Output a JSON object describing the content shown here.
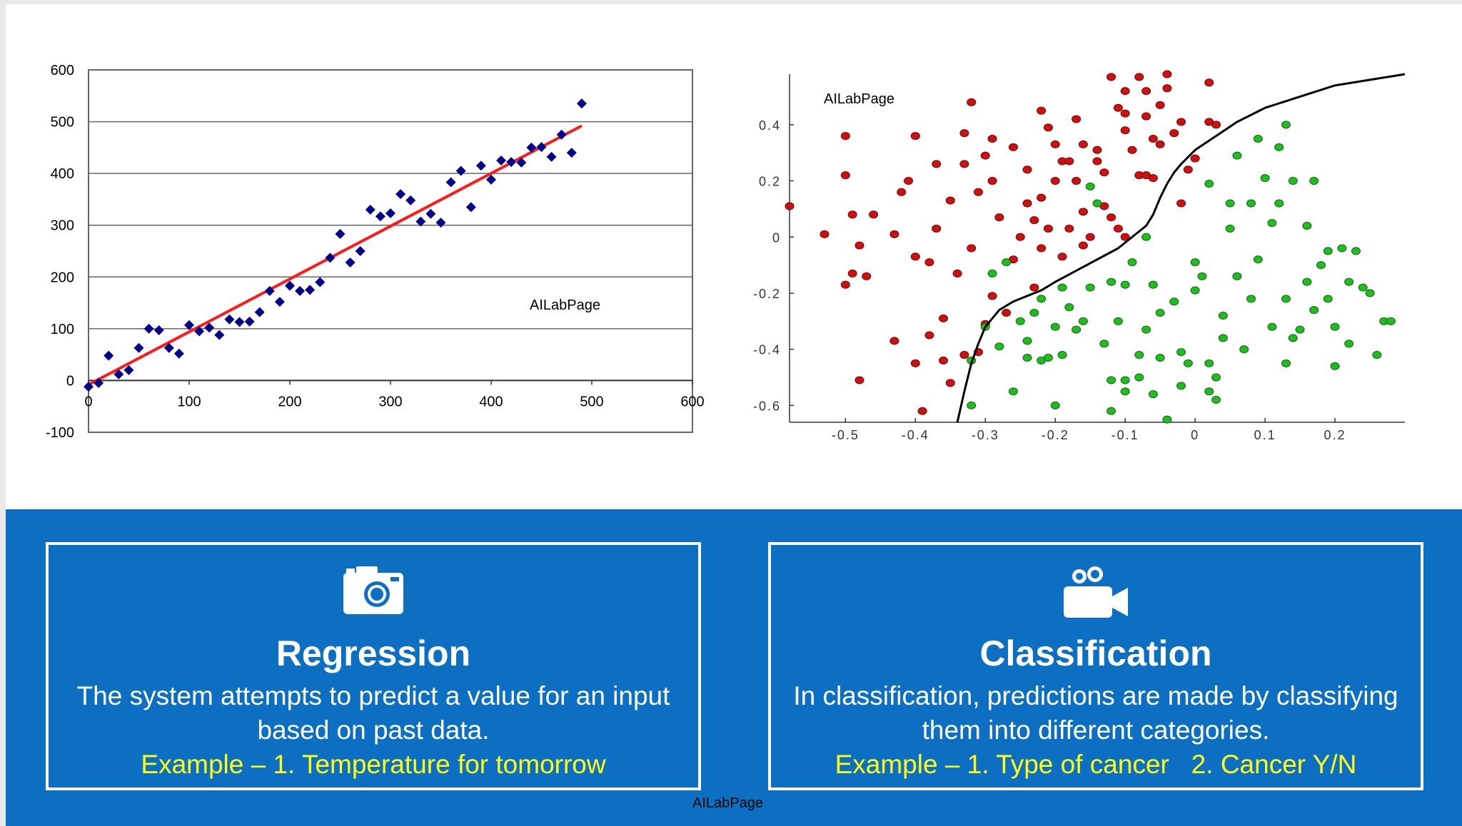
{
  "chart_data": [
    {
      "type": "scatter",
      "title": "",
      "xlabel": "",
      "ylabel": "",
      "xlim": [
        0,
        600
      ],
      "ylim": [
        -100,
        600
      ],
      "xticks": [
        0,
        100,
        200,
        300,
        400,
        500,
        600
      ],
      "yticks": [
        -100,
        0,
        100,
        200,
        300,
        400,
        500,
        600
      ],
      "grid": "horizontal",
      "watermark": "AILabPage",
      "marker_color": "#00008b",
      "fit_line_color": "#ff1a1a",
      "points": [
        [
          0,
          -12
        ],
        [
          10,
          -5
        ],
        [
          20,
          48
        ],
        [
          30,
          12
        ],
        [
          40,
          20
        ],
        [
          50,
          63
        ],
        [
          60,
          100
        ],
        [
          70,
          97
        ],
        [
          80,
          63
        ],
        [
          90,
          52
        ],
        [
          100,
          107
        ],
        [
          110,
          95
        ],
        [
          120,
          102
        ],
        [
          130,
          88
        ],
        [
          140,
          118
        ],
        [
          150,
          113
        ],
        [
          160,
          114
        ],
        [
          170,
          132
        ],
        [
          180,
          173
        ],
        [
          190,
          152
        ],
        [
          200,
          183
        ],
        [
          210,
          173
        ],
        [
          220,
          175
        ],
        [
          230,
          190
        ],
        [
          240,
          237
        ],
        [
          250,
          283
        ],
        [
          260,
          228
        ],
        [
          270,
          250
        ],
        [
          280,
          330
        ],
        [
          290,
          317
        ],
        [
          300,
          323
        ],
        [
          310,
          360
        ],
        [
          320,
          348
        ],
        [
          330,
          307
        ],
        [
          340,
          322
        ],
        [
          350,
          305
        ],
        [
          360,
          383
        ],
        [
          370,
          405
        ],
        [
          380,
          335
        ],
        [
          390,
          415
        ],
        [
          400,
          388
        ],
        [
          410,
          425
        ],
        [
          420,
          422
        ],
        [
          430,
          421
        ],
        [
          440,
          450
        ],
        [
          450,
          451
        ],
        [
          460,
          432
        ],
        [
          470,
          475
        ],
        [
          480,
          440
        ],
        [
          490,
          535
        ]
      ],
      "fit_line": {
        "x": [
          0,
          490
        ],
        "y": [
          -8,
          492
        ]
      }
    },
    {
      "type": "scatter",
      "title": "",
      "xlabel": "",
      "ylabel": "",
      "xlim": [
        -0.58,
        0.3
      ],
      "ylim": [
        -0.66,
        0.58
      ],
      "xticks": [
        -0.5,
        -0.4,
        -0.3,
        -0.2,
        -0.1,
        0,
        0.1,
        0.2
      ],
      "xtick_labels": [
        "-0.5",
        "-0.4",
        "-0.3",
        "-0.2",
        "-0.1",
        "0",
        "0.1",
        "0.2"
      ],
      "yticks": [
        0.4,
        0.2,
        0,
        -0.2,
        -0.4,
        -0.6
      ],
      "ytick_labels": [
        "0.4",
        "0.2",
        "0",
        "-0.2",
        "-0.4",
        "-0.6"
      ],
      "grid": "off",
      "watermark": "AILabPage",
      "series": [
        {
          "color": "#cc1111",
          "points": [
            [
              -0.58,
              0.11
            ],
            [
              -0.53,
              0.01
            ],
            [
              -0.5,
              -0.17
            ],
            [
              -0.5,
              0.36
            ],
            [
              -0.5,
              0.22
            ],
            [
              -0.49,
              0.08
            ],
            [
              -0.49,
              -0.13
            ],
            [
              -0.48,
              -0.03
            ],
            [
              -0.47,
              -0.14
            ],
            [
              -0.46,
              0.08
            ],
            [
              -0.48,
              -0.51
            ],
            [
              -0.43,
              0.01
            ],
            [
              -0.43,
              -0.37
            ],
            [
              -0.42,
              0.16
            ],
            [
              -0.41,
              0.2
            ],
            [
              -0.4,
              0.36
            ],
            [
              -0.4,
              -0.07
            ],
            [
              -0.4,
              -0.45
            ],
            [
              -0.39,
              -0.62
            ],
            [
              -0.38,
              -0.35
            ],
            [
              -0.38,
              -0.09
            ],
            [
              -0.37,
              0.03
            ],
            [
              -0.37,
              0.26
            ],
            [
              -0.36,
              -0.29
            ],
            [
              -0.36,
              -0.44
            ],
            [
              -0.35,
              0.13
            ],
            [
              -0.35,
              -0.52
            ],
            [
              -0.34,
              -0.13
            ],
            [
              -0.33,
              0.37
            ],
            [
              -0.33,
              0.26
            ],
            [
              -0.33,
              -0.42
            ],
            [
              -0.32,
              0.48
            ],
            [
              -0.32,
              -0.04
            ],
            [
              -0.31,
              0.16
            ],
            [
              -0.31,
              -0.41
            ],
            [
              -0.3,
              0.29
            ],
            [
              -0.3,
              -0.31
            ],
            [
              -0.29,
              0.35
            ],
            [
              -0.29,
              0.2
            ],
            [
              -0.29,
              -0.21
            ],
            [
              -0.28,
              0.07
            ],
            [
              -0.27,
              -0.27
            ],
            [
              -0.26,
              0.32
            ],
            [
              -0.26,
              -0.08
            ],
            [
              -0.25,
              0.0
            ],
            [
              -0.24,
              0.24
            ],
            [
              -0.24,
              0.12
            ],
            [
              -0.23,
              0.06
            ],
            [
              -0.23,
              -0.18
            ],
            [
              -0.22,
              0.45
            ],
            [
              -0.22,
              0.14
            ],
            [
              -0.22,
              -0.04
            ],
            [
              -0.21,
              0.39
            ],
            [
              -0.21,
              0.03
            ],
            [
              -0.2,
              0.2
            ],
            [
              -0.2,
              0.33
            ],
            [
              -0.19,
              -0.07
            ],
            [
              -0.19,
              0.27
            ],
            [
              -0.18,
              0.03
            ],
            [
              -0.18,
              0.27
            ],
            [
              -0.17,
              0.2
            ],
            [
              -0.17,
              0.42
            ],
            [
              -0.16,
              0.33
            ],
            [
              -0.16,
              0.09
            ],
            [
              -0.16,
              -0.03
            ],
            [
              -0.15,
              0.0
            ],
            [
              -0.14,
              0.31
            ],
            [
              -0.14,
              0.27
            ],
            [
              -0.13,
              0.11
            ],
            [
              -0.13,
              0.23
            ],
            [
              -0.12,
              0.57
            ],
            [
              -0.12,
              0.07
            ],
            [
              -0.11,
              0.03
            ],
            [
              -0.11,
              0.46
            ],
            [
              -0.1,
              0.52
            ],
            [
              -0.1,
              0.38
            ],
            [
              -0.1,
              0.0
            ],
            [
              -0.1,
              0.44
            ],
            [
              -0.09,
              0.31
            ],
            [
              -0.08,
              0.22
            ],
            [
              -0.08,
              0.57
            ],
            [
              -0.07,
              0.52
            ],
            [
              -0.07,
              0.43
            ],
            [
              -0.07,
              0.22
            ],
            [
              -0.06,
              0.35
            ],
            [
              -0.06,
              0.21
            ],
            [
              -0.05,
              0.47
            ],
            [
              -0.05,
              0.33
            ],
            [
              -0.04,
              0.58
            ],
            [
              -0.04,
              0.53
            ],
            [
              -0.03,
              0.37
            ],
            [
              -0.02,
              0.12
            ],
            [
              -0.02,
              0.41
            ],
            [
              -0.01,
              0.24
            ],
            [
              0.0,
              0.28
            ],
            [
              0.02,
              0.41
            ],
            [
              0.02,
              0.55
            ],
            [
              0.03,
              0.4
            ]
          ]
        },
        {
          "color": "#22bb22",
          "points": [
            [
              -0.32,
              -0.6
            ],
            [
              -0.32,
              -0.44
            ],
            [
              -0.3,
              -0.32
            ],
            [
              -0.29,
              -0.13
            ],
            [
              -0.28,
              -0.39
            ],
            [
              -0.27,
              -0.09
            ],
            [
              -0.26,
              -0.55
            ],
            [
              -0.25,
              -0.3
            ],
            [
              -0.24,
              -0.43
            ],
            [
              -0.24,
              -0.37
            ],
            [
              -0.23,
              -0.27
            ],
            [
              -0.22,
              -0.44
            ],
            [
              -0.22,
              -0.22
            ],
            [
              -0.21,
              -0.43
            ],
            [
              -0.2,
              -0.6
            ],
            [
              -0.2,
              -0.32
            ],
            [
              -0.19,
              -0.42
            ],
            [
              -0.19,
              -0.18
            ],
            [
              -0.18,
              -0.25
            ],
            [
              -0.17,
              -0.33
            ],
            [
              -0.16,
              -0.3
            ],
            [
              -0.15,
              -0.18
            ],
            [
              -0.15,
              0.18
            ],
            [
              -0.14,
              0.12
            ],
            [
              -0.13,
              -0.38
            ],
            [
              -0.12,
              -0.16
            ],
            [
              -0.12,
              -0.51
            ],
            [
              -0.12,
              -0.62
            ],
            [
              -0.11,
              -0.3
            ],
            [
              -0.1,
              -0.51
            ],
            [
              -0.1,
              -0.55
            ],
            [
              -0.1,
              -0.17
            ],
            [
              -0.09,
              -0.09
            ],
            [
              -0.08,
              -0.42
            ],
            [
              -0.08,
              -0.5
            ],
            [
              -0.07,
              0.0
            ],
            [
              -0.07,
              -0.33
            ],
            [
              -0.06,
              -0.17
            ],
            [
              -0.06,
              -0.56
            ],
            [
              -0.05,
              -0.27
            ],
            [
              -0.05,
              -0.43
            ],
            [
              -0.04,
              -0.65
            ],
            [
              -0.03,
              -0.23
            ],
            [
              -0.02,
              -0.53
            ],
            [
              -0.02,
              -0.41
            ],
            [
              -0.01,
              -0.45
            ],
            [
              0.0,
              -0.19
            ],
            [
              0.0,
              -0.09
            ],
            [
              0.01,
              -0.14
            ],
            [
              0.02,
              -0.45
            ],
            [
              0.02,
              -0.55
            ],
            [
              0.02,
              0.19
            ],
            [
              0.03,
              -0.5
            ],
            [
              0.03,
              -0.58
            ],
            [
              0.04,
              -0.28
            ],
            [
              0.04,
              -0.36
            ],
            [
              0.05,
              0.12
            ],
            [
              0.05,
              0.03
            ],
            [
              0.06,
              -0.14
            ],
            [
              0.06,
              0.29
            ],
            [
              0.07,
              -0.4
            ],
            [
              0.08,
              -0.22
            ],
            [
              0.08,
              0.12
            ],
            [
              0.09,
              0.35
            ],
            [
              0.09,
              -0.08
            ],
            [
              0.1,
              0.21
            ],
            [
              0.11,
              -0.32
            ],
            [
              0.11,
              0.05
            ],
            [
              0.12,
              0.32
            ],
            [
              0.12,
              0.12
            ],
            [
              0.13,
              0.4
            ],
            [
              0.13,
              -0.22
            ],
            [
              0.13,
              -0.45
            ],
            [
              0.14,
              -0.36
            ],
            [
              0.14,
              0.2
            ],
            [
              0.15,
              -0.33
            ],
            [
              0.16,
              -0.16
            ],
            [
              0.16,
              0.04
            ],
            [
              0.17,
              -0.26
            ],
            [
              0.17,
              0.2
            ],
            [
              0.18,
              -0.1
            ],
            [
              0.19,
              -0.05
            ],
            [
              0.19,
              -0.22
            ],
            [
              0.2,
              -0.32
            ],
            [
              0.2,
              -0.46
            ],
            [
              0.21,
              -0.04
            ],
            [
              0.22,
              -0.16
            ],
            [
              0.22,
              -0.38
            ],
            [
              0.23,
              -0.05
            ],
            [
              0.24,
              -0.18
            ],
            [
              0.25,
              -0.2
            ],
            [
              0.26,
              -0.42
            ],
            [
              0.27,
              -0.3
            ],
            [
              0.28,
              -0.3
            ]
          ]
        }
      ],
      "decision_boundary": {
        "color": "#000000",
        "x": [
          -0.34,
          -0.33,
          -0.32,
          -0.31,
          -0.3,
          -0.28,
          -0.26,
          -0.24,
          -0.22,
          -0.2,
          -0.17,
          -0.14,
          -0.11,
          -0.09,
          -0.07,
          -0.06,
          -0.05,
          -0.04,
          -0.03,
          -0.02,
          0.0,
          0.03,
          0.06,
          0.1,
          0.15,
          0.2,
          0.25,
          0.3
        ],
        "y": [
          -0.66,
          -0.55,
          -0.45,
          -0.38,
          -0.32,
          -0.26,
          -0.23,
          -0.21,
          -0.19,
          -0.16,
          -0.12,
          -0.08,
          -0.04,
          0.0,
          0.04,
          0.08,
          0.14,
          0.19,
          0.23,
          0.26,
          0.31,
          0.36,
          0.41,
          0.46,
          0.5,
          0.54,
          0.56,
          0.58
        ]
      }
    }
  ],
  "cards": [
    {
      "icon": "camera-icon",
      "title": "Regression",
      "description": "The system attempts to predict a value for an input based on past data.",
      "example": "Example – 1. Temperature for tomorrow"
    },
    {
      "icon": "video-camera-icon",
      "title": "Classification",
      "description": "In classification, predictions are made by classifying them into different categories.",
      "example": "Example – 1. Type of cancer   2. Cancer Y/N"
    }
  ],
  "watermark_bottom": "AILabPage",
  "colors": {
    "band": "#0c6fc2",
    "example_text": "#ffff1a"
  }
}
